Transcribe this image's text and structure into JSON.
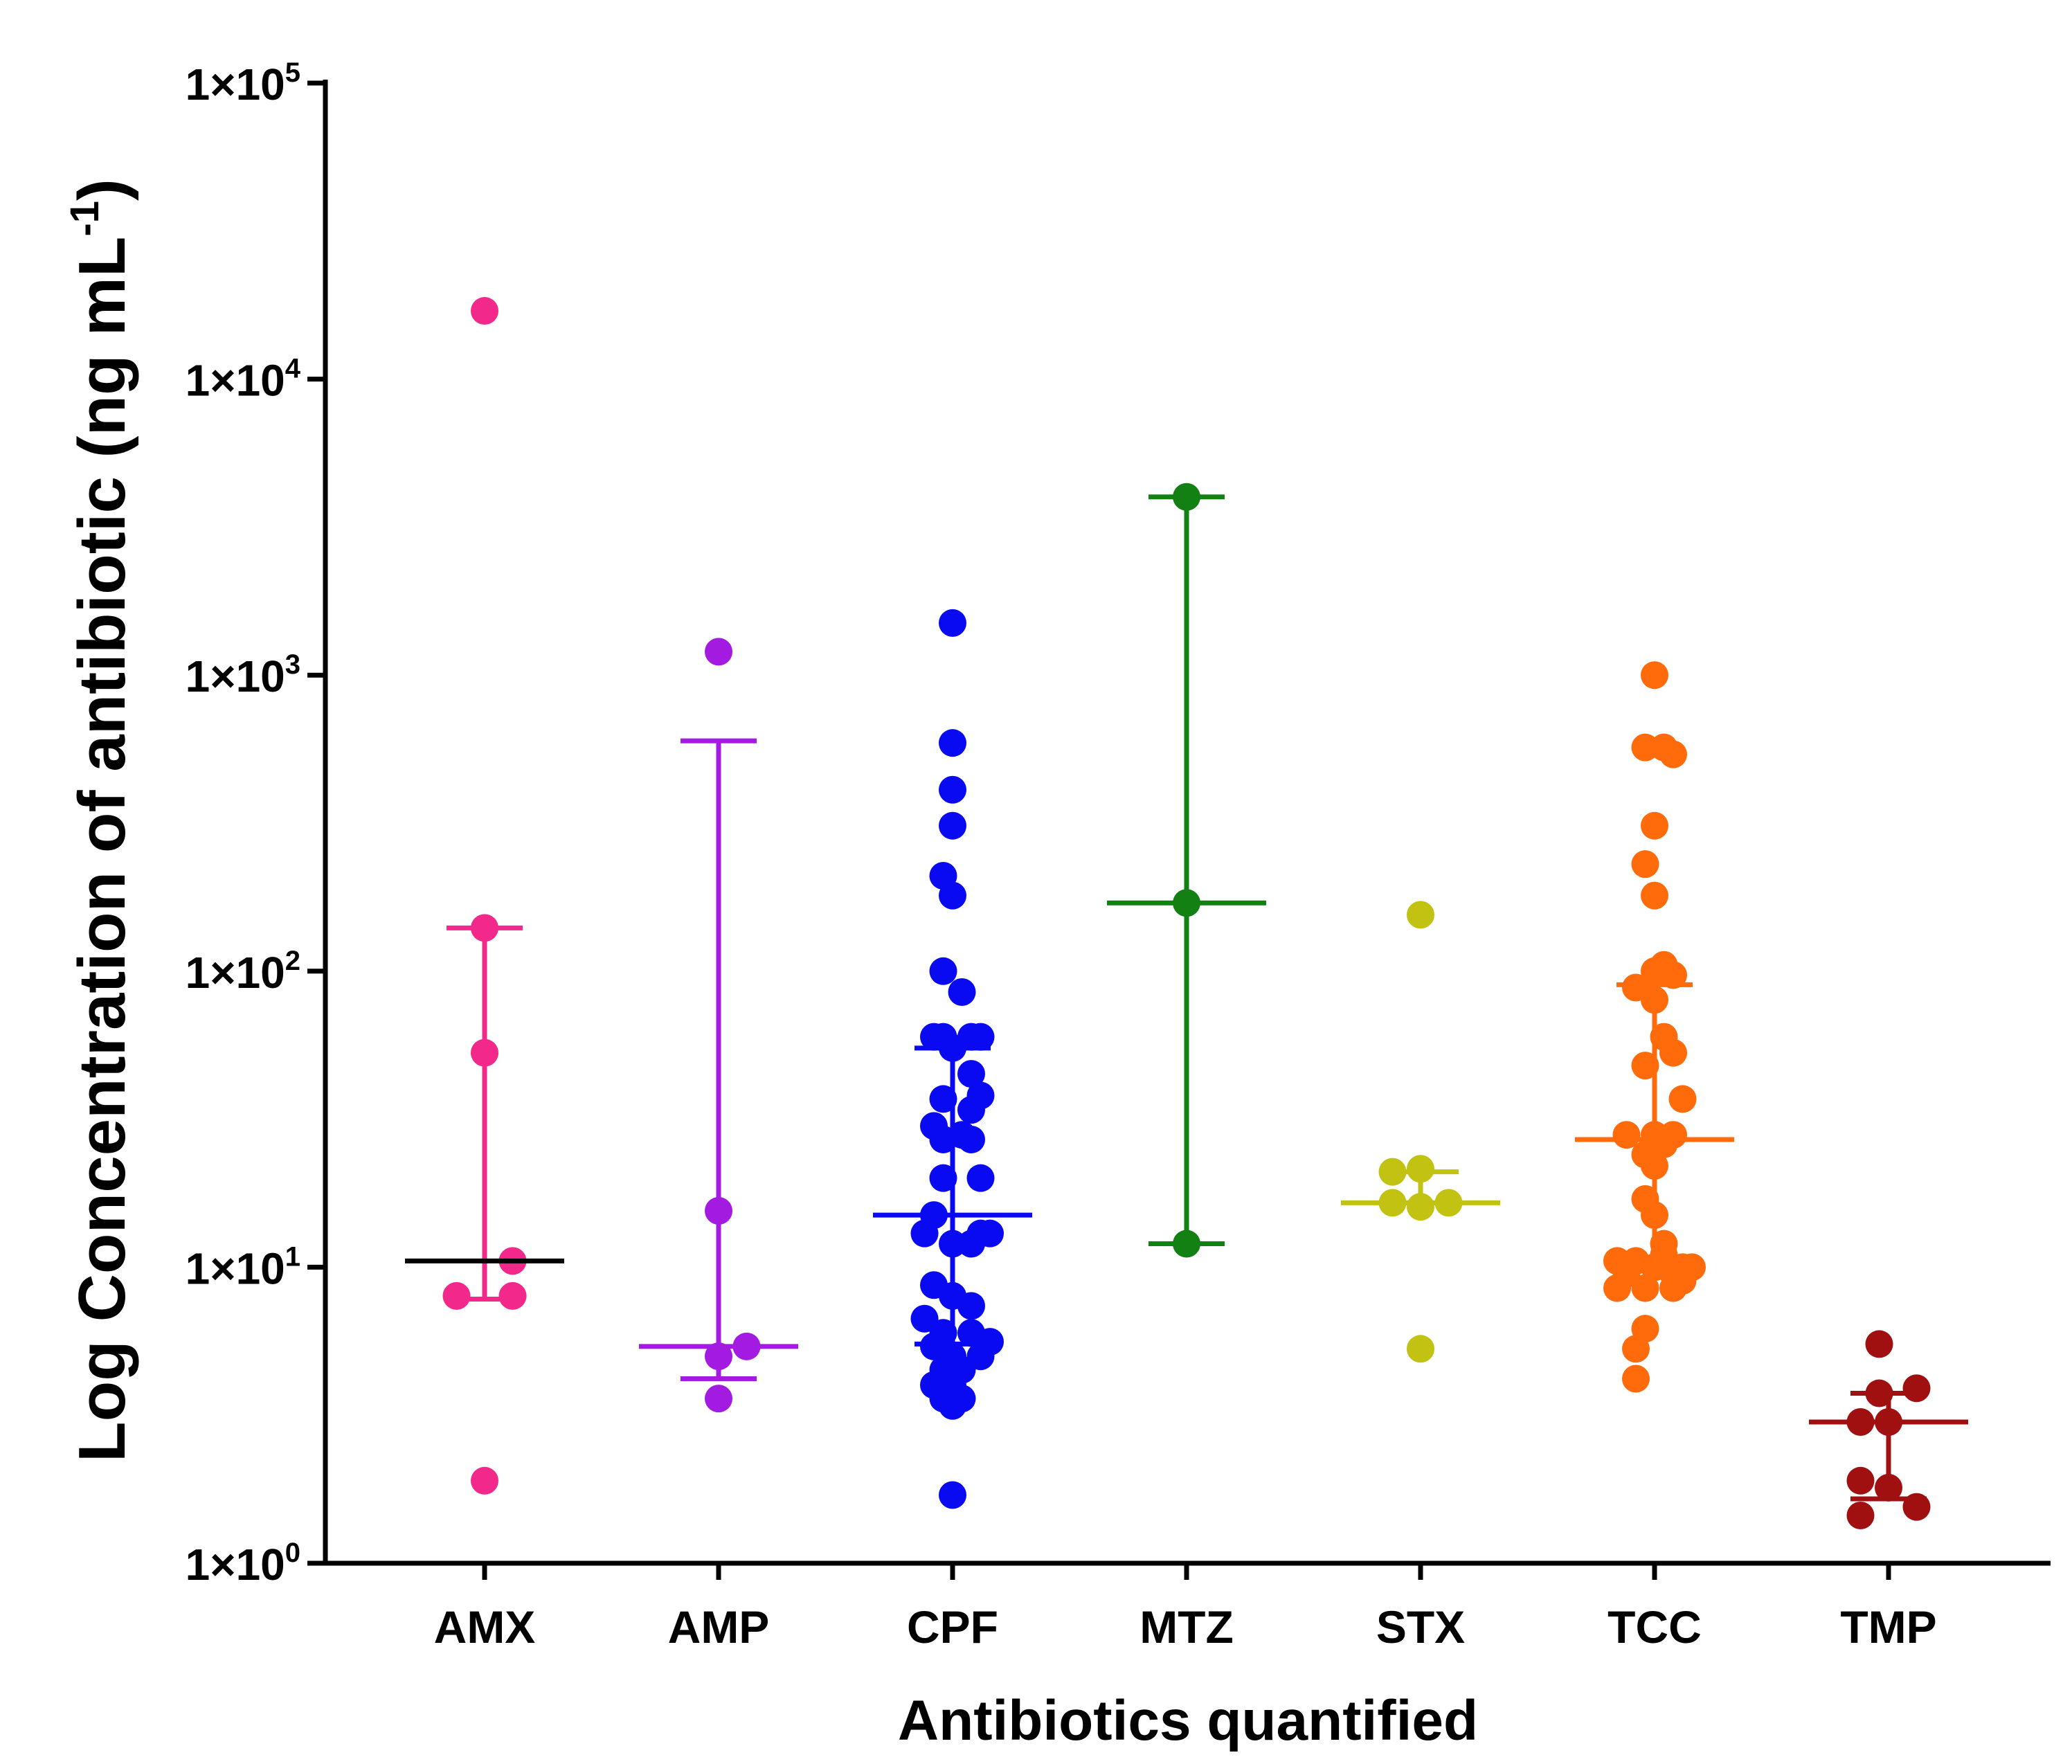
{
  "chart_data": {
    "type": "scatter",
    "subtype": "dot-plot with median and interquartile range",
    "title": "",
    "xlabel": "Antibiotics quantified",
    "ylabel": {
      "prefix": "Log Concentration of antibiotic (ng mL",
      "exponent": "-1",
      "suffix": ")"
    },
    "yscale": "log10",
    "ylim": [
      1,
      100000
    ],
    "yticks": [
      {
        "value": 1,
        "base": "1×10",
        "exp": "0"
      },
      {
        "value": 10,
        "base": "1×10",
        "exp": "1"
      },
      {
        "value": 100,
        "base": "1×10",
        "exp": "2"
      },
      {
        "value": 1000,
        "base": "1×10",
        "exp": "3"
      },
      {
        "value": 10000,
        "base": "1×10",
        "exp": "4"
      },
      {
        "value": 100000,
        "base": "1×10",
        "exp": "5"
      }
    ],
    "categories": [
      "AMX",
      "AMP",
      "CPF",
      "MTZ",
      "STX",
      "TCC",
      "TMP"
    ],
    "series": [
      {
        "name": "AMX",
        "color": "#f2288a",
        "median_color": "#000000",
        "median": 10.5,
        "q1": 7.8,
        "q3": 140,
        "points": [
          [
            0,
            17000
          ],
          [
            0,
            140
          ],
          [
            0,
            53
          ],
          [
            -0.27,
            8
          ],
          [
            0.27,
            8
          ],
          [
            0.27,
            10.5
          ],
          [
            0,
            1.9
          ]
        ]
      },
      {
        "name": "AMP",
        "color": "#a31be0",
        "median": 5.4,
        "q1": 4.2,
        "q3": 600,
        "points": [
          [
            0,
            1200
          ],
          [
            0,
            15.5
          ],
          [
            0.27,
            5.4
          ],
          [
            0,
            5
          ],
          [
            0,
            3.6
          ]
        ]
      },
      {
        "name": "CPF",
        "color": "#0a0af2",
        "median": 15,
        "q1": 5.5,
        "q3": 55,
        "points": [
          [
            0,
            1500
          ],
          [
            0,
            590
          ],
          [
            0,
            410
          ],
          [
            0,
            310
          ],
          [
            -0.09,
            210
          ],
          [
            0,
            180
          ],
          [
            -0.09,
            100
          ],
          [
            0.09,
            85
          ],
          [
            -0.18,
            60
          ],
          [
            -0.09,
            60
          ],
          [
            0.18,
            60
          ],
          [
            0.27,
            60
          ],
          [
            0,
            55
          ],
          [
            0.18,
            45
          ],
          [
            0.27,
            38
          ],
          [
            -0.09,
            37
          ],
          [
            0.18,
            34
          ],
          [
            -0.18,
            30
          ],
          [
            0.09,
            28
          ],
          [
            -0.09,
            27
          ],
          [
            0.18,
            27
          ],
          [
            0.27,
            20
          ],
          [
            -0.09,
            20
          ],
          [
            -0.18,
            15
          ],
          [
            -0.27,
            13
          ],
          [
            0.27,
            13
          ],
          [
            0.36,
            13
          ],
          [
            0.18,
            12
          ],
          [
            0,
            12
          ],
          [
            -0.18,
            8.7
          ],
          [
            0,
            8
          ],
          [
            0.18,
            7.4
          ],
          [
            -0.27,
            6.7
          ],
          [
            -0.09,
            6
          ],
          [
            0.18,
            6
          ],
          [
            0.36,
            5.6
          ],
          [
            -0.18,
            5.4
          ],
          [
            0,
            5
          ],
          [
            0.27,
            5
          ],
          [
            -0.09,
            4.5
          ],
          [
            0.09,
            4.5
          ],
          [
            -0.18,
            4
          ],
          [
            0,
            4
          ],
          [
            -0.09,
            3.6
          ],
          [
            0.09,
            3.6
          ],
          [
            0,
            3.4
          ],
          [
            0,
            1.7
          ]
        ]
      },
      {
        "name": "MTZ",
        "color": "#128012",
        "median": 170,
        "q1": 12,
        "q3": 4000,
        "points": [
          [
            0,
            4000
          ],
          [
            0,
            170
          ],
          [
            0,
            12
          ]
        ]
      },
      {
        "name": "STX",
        "color": "#c2c212",
        "median": 16.5,
        "q1": 16.5,
        "q3": 21,
        "points": [
          [
            0,
            155
          ],
          [
            -0.27,
            21
          ],
          [
            0,
            21.5
          ],
          [
            -0.27,
            16.5
          ],
          [
            0,
            16
          ],
          [
            0.27,
            16.5
          ],
          [
            0,
            5.3
          ]
        ]
      },
      {
        "name": "TCC",
        "color": "#ff6a0a",
        "median": 27,
        "q1": 10,
        "q3": 90,
        "points": [
          [
            0,
            1000
          ],
          [
            -0.09,
            570
          ],
          [
            0.09,
            570
          ],
          [
            0.18,
            540
          ],
          [
            0,
            310
          ],
          [
            -0.09,
            230
          ],
          [
            0,
            180
          ],
          [
            0.09,
            105
          ],
          [
            0,
            100
          ],
          [
            0.18,
            97
          ],
          [
            -0.18,
            88
          ],
          [
            0,
            80
          ],
          [
            0.09,
            60
          ],
          [
            0.18,
            53
          ],
          [
            -0.09,
            48
          ],
          [
            0.27,
            37
          ],
          [
            -0.27,
            28
          ],
          [
            0,
            28
          ],
          [
            0.18,
            28
          ],
          [
            0.09,
            26
          ],
          [
            -0.09,
            24
          ],
          [
            0,
            22
          ],
          [
            -0.09,
            17
          ],
          [
            0,
            15
          ],
          [
            0.09,
            12
          ],
          [
            -0.36,
            10.5
          ],
          [
            -0.18,
            10.5
          ],
          [
            0.09,
            11
          ],
          [
            0,
            10
          ],
          [
            0.27,
            10
          ],
          [
            0.36,
            10
          ],
          [
            -0.27,
            9.5
          ],
          [
            0.18,
            9.5
          ],
          [
            -0.36,
            8.5
          ],
          [
            -0.09,
            8.5
          ],
          [
            0.18,
            8.5
          ],
          [
            0.27,
            9
          ],
          [
            -0.09,
            6.2
          ],
          [
            -0.18,
            5.3
          ],
          [
            -0.18,
            4.2
          ]
        ]
      },
      {
        "name": "TMP",
        "color": "#a01010",
        "median": 3,
        "q1": 1.65,
        "q3": 3.75,
        "points": [
          [
            -0.09,
            5.5
          ],
          [
            0.27,
            3.9
          ],
          [
            -0.09,
            3.75
          ],
          [
            -0.27,
            3
          ],
          [
            0,
            3
          ],
          [
            -0.27,
            1.9
          ],
          [
            0,
            1.8
          ],
          [
            0.27,
            1.55
          ],
          [
            -0.27,
            1.45
          ]
        ]
      }
    ]
  }
}
